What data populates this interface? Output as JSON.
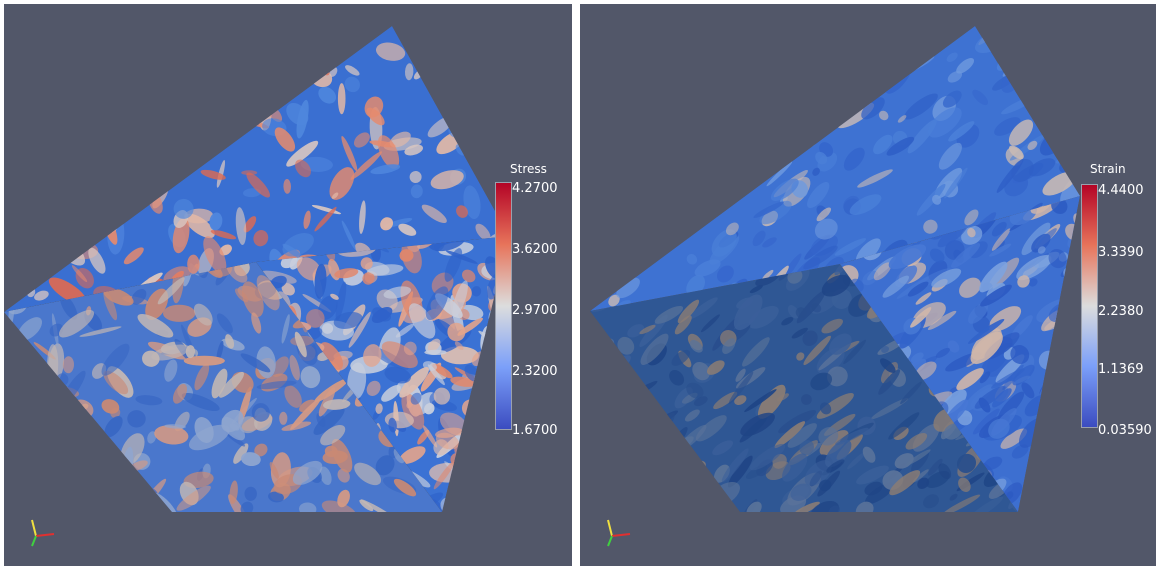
{
  "panels": [
    {
      "id": "stress",
      "colorbar": {
        "title": "Stress",
        "ticks": [
          "4.2700",
          "3.6200",
          "2.9700",
          "2.3200",
          "1.6700"
        ],
        "colors": [
          "#b40426",
          "#e7745b",
          "#dcdddd",
          "#7b9ff9",
          "#3b4cc0"
        ]
      },
      "field_palette": {
        "top": [
          "#3a6fd1",
          "#e58a6e",
          "#e3b9a6",
          "#4f86dd",
          "#d9c7c1",
          "#e06a50"
        ],
        "right": [
          "#3b72d4",
          "#e0876c",
          "#dcbdb1",
          "#2f62c9",
          "#e4a48c",
          "#c9cfdd"
        ],
        "left": [
          "#4a77cc",
          "#c98974",
          "#c2b7b4",
          "#3766c3",
          "#d69a83",
          "#8fa6cf"
        ]
      }
    },
    {
      "id": "strain",
      "colorbar": {
        "title": "Strain",
        "ticks": [
          "4.4400",
          "3.3390",
          "2.2380",
          "1.1369",
          "0.03590"
        ],
        "colors": [
          "#b40426",
          "#e7745b",
          "#dcdddd",
          "#7b9ff9",
          "#3b4cc0"
        ]
      },
      "field_palette": {
        "top": [
          "#3e72d2",
          "#2f5fc6",
          "#6f9ade",
          "#c8b9b4",
          "#4a7fd8",
          "#3566cc"
        ],
        "right": [
          "#3d6fd0",
          "#2c5ac2",
          "#7da3df",
          "#d0b6aa",
          "#4778d4",
          "#3263c9"
        ],
        "left": [
          "#2f5794",
          "#1f4586",
          "#5a739a",
          "#8a7c74",
          "#3a5f9a",
          "#284e8d"
        ]
      }
    }
  ],
  "axes_triad": {
    "colors": [
      "#f0e040",
      "#e03030",
      "#40d040"
    ]
  }
}
